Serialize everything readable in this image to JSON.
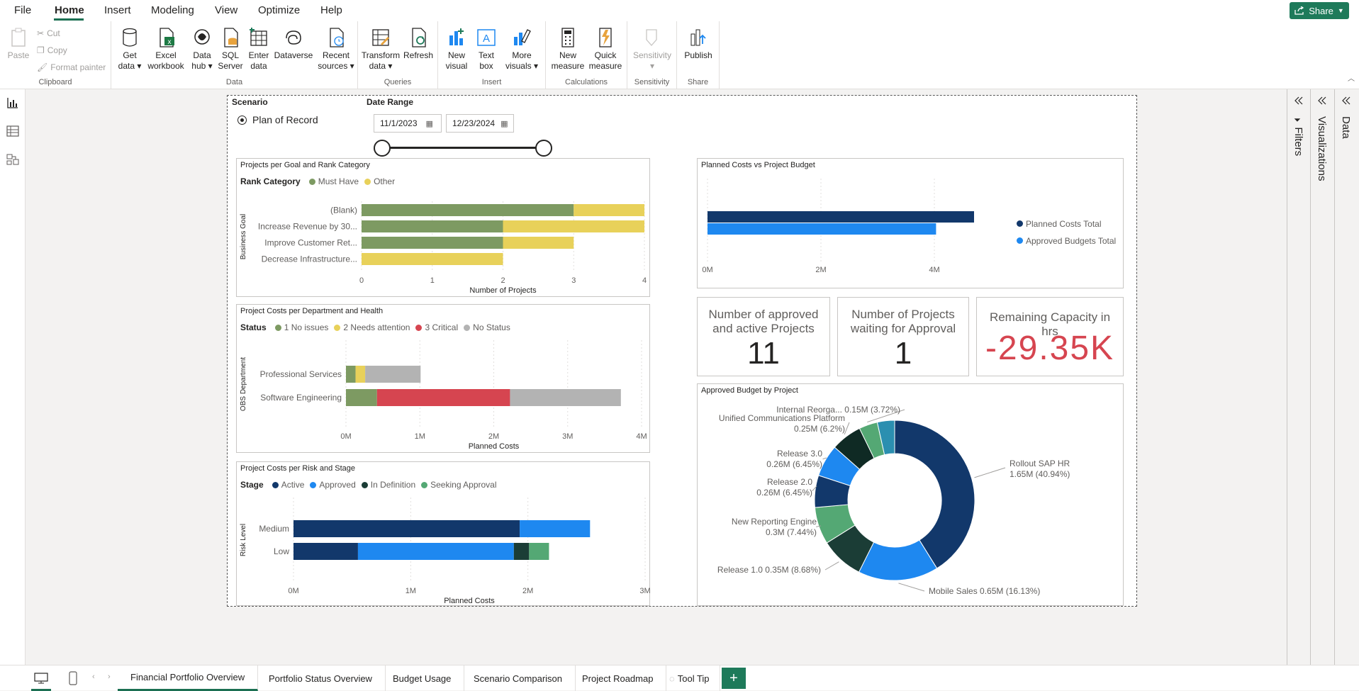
{
  "menu": {
    "items": [
      "File",
      "Home",
      "Insert",
      "Modeling",
      "View",
      "Optimize",
      "Help"
    ],
    "active": "Home",
    "share_label": "Share"
  },
  "ribbon": {
    "clipboard": {
      "label": "Clipboard",
      "paste": "Paste",
      "cut": "Cut",
      "copy": "Copy",
      "format_painter": "Format painter"
    },
    "data": {
      "label": "Data",
      "get_data": [
        "Get",
        "data"
      ],
      "excel": [
        "Excel",
        "workbook"
      ],
      "data_hub": [
        "Data",
        "hub"
      ],
      "sql": [
        "SQL",
        "Server"
      ],
      "enter": [
        "Enter",
        "data"
      ],
      "dataverse": "Dataverse",
      "recent": [
        "Recent",
        "sources"
      ]
    },
    "queries": {
      "label": "Queries",
      "transform": [
        "Transform",
        "data"
      ],
      "refresh": "Refresh"
    },
    "insert": {
      "label": "Insert",
      "new_visual": [
        "New",
        "visual"
      ],
      "text_box": [
        "Text",
        "box"
      ],
      "more_visuals": [
        "More",
        "visuals"
      ]
    },
    "calculations": {
      "label": "Calculations",
      "new_measure": [
        "New",
        "measure"
      ],
      "quick_measure": [
        "Quick",
        "measure"
      ]
    },
    "sensitivity": {
      "label": "Sensitivity",
      "btn": "Sensitivity"
    },
    "share": {
      "label": "Share",
      "publish": "Publish"
    }
  },
  "panes": {
    "filters": "Filters",
    "visualizations": "Visualizations",
    "data": "Data"
  },
  "slicers": {
    "scenario": {
      "title": "Scenario",
      "option": "Plan of Record"
    },
    "date_range": {
      "title": "Date Range",
      "start": "11/1/2023",
      "end": "12/23/2024"
    }
  },
  "kpis": [
    {
      "label": "Number of approved and active Projects",
      "value": "11"
    },
    {
      "label": "Number of Projects waiting for Approval",
      "value": "1"
    },
    {
      "label": "Remaining Capacity in hrs",
      "value": "-29.35K",
      "color": "#d64550"
    }
  ],
  "colors": {
    "accent": "#1e7a5a",
    "must_have": "#7d9a62",
    "other": "#e8d15a",
    "critical": "#d64550",
    "no_status": "#b3b3b3",
    "active": "#12386b",
    "approved": "#1e88f0",
    "in_definition": "#1b3d36",
    "seeking_approval": "#54a874"
  },
  "chart_data": [
    {
      "type": "bar",
      "title": "Projects per Goal and Rank Category",
      "legend_title": "Rank Category",
      "ylabel": "Business Goal",
      "xlabel": "Number of Projects",
      "categories": [
        "(Blank)",
        "Increase Revenue by 30...",
        "Improve Customer Ret...",
        "Decrease Infrastructure..."
      ],
      "series": [
        {
          "name": "Must Have",
          "values": [
            3,
            2,
            2,
            0
          ],
          "color": "#7d9a62"
        },
        {
          "name": "Other",
          "values": [
            1,
            2,
            1,
            2
          ],
          "color": "#e8d15a"
        }
      ],
      "xlim": [
        0,
        4
      ],
      "ticks": [
        "0",
        "1",
        "2",
        "3",
        "4"
      ],
      "stacked": true
    },
    {
      "type": "bar",
      "title": "Project Costs per Department and Health",
      "legend_title": "Status",
      "ylabel": "OBS Department",
      "xlabel": "Planned Costs",
      "categories": [
        "Professional Services",
        "Software Engineering"
      ],
      "series": [
        {
          "name": "1 No issues",
          "values": [
            0.13,
            0.42
          ],
          "color": "#7d9a62"
        },
        {
          "name": "2 Needs attention",
          "values": [
            0.13,
            0
          ],
          "color": "#e8d15a"
        },
        {
          "name": "3 Critical",
          "values": [
            0,
            1.8
          ],
          "color": "#d64550"
        },
        {
          "name": "No Status",
          "values": [
            0.75,
            1.5
          ],
          "color": "#b3b3b3"
        }
      ],
      "xlim": [
        0,
        4
      ],
      "ticks": [
        "0M",
        "1M",
        "2M",
        "3M",
        "4M"
      ],
      "stacked": true
    },
    {
      "type": "bar",
      "title": "Project Costs per Risk and Stage",
      "legend_title": "Stage",
      "ylabel": "Risk Level",
      "xlabel": "Planned Costs",
      "categories": [
        "Medium",
        "Low"
      ],
      "series": [
        {
          "name": "Active",
          "values": [
            1.93,
            0.55
          ],
          "color": "#12386b"
        },
        {
          "name": "Approved",
          "values": [
            0.6,
            1.33
          ],
          "color": "#1e88f0"
        },
        {
          "name": "In Definition",
          "values": [
            0,
            0.13
          ],
          "color": "#1b3d36"
        },
        {
          "name": "Seeking Approval",
          "values": [
            0,
            0.17
          ],
          "color": "#54a874"
        }
      ],
      "xlim": [
        0,
        3
      ],
      "ticks": [
        "0M",
        "1M",
        "2M",
        "3M"
      ],
      "stacked": true
    },
    {
      "type": "bar",
      "title": "Planned Costs vs Project Budget",
      "categories": [
        ""
      ],
      "series": [
        {
          "name": "Planned Costs Total",
          "values": [
            4.7
          ],
          "color": "#12386b"
        },
        {
          "name": "Approved Budgets Total",
          "values": [
            4.03
          ],
          "color": "#1e88f0"
        }
      ],
      "xlim": [
        0,
        5
      ],
      "ticks": [
        "0M",
        "2M",
        "4M"
      ]
    },
    {
      "type": "pie",
      "title": "Approved Budget by Project",
      "slices": [
        {
          "name": "Rollout SAP HR",
          "value": 1.65,
          "label": "1.65M (40.94%)",
          "color": "#12386b"
        },
        {
          "name": "Mobile Sales",
          "value": 0.65,
          "label": "0.65M (16.13%)",
          "color": "#1e88f0"
        },
        {
          "name": "Release 1.0",
          "value": 0.35,
          "label": "0.35M (8.68%)",
          "color": "#1b3d36"
        },
        {
          "name": "New Reporting Engine",
          "value": 0.3,
          "label": "0.3M (7.44%)",
          "color": "#54a874"
        },
        {
          "name": "Release 2.0",
          "value": 0.26,
          "label": "0.26M (6.45%)",
          "color": "#12386b"
        },
        {
          "name": "Release 3.0",
          "value": 0.26,
          "label": "0.26M (6.45%)",
          "color": "#1e88f0"
        },
        {
          "name": "Unified Communications Platform",
          "value": 0.25,
          "label": "0.25M (6.2%)",
          "color": "#0f2a24"
        },
        {
          "name": "Internal Reorga...",
          "value": 0.15,
          "label": "0.15M (3.72%)",
          "color": "#54a874"
        },
        {
          "name": "",
          "value": 0.14,
          "label": "",
          "color": "#2b8fb0"
        }
      ]
    }
  ],
  "tabs": [
    "Financial Portfolio Overview",
    "Portfolio Status Overview",
    "Budget Usage",
    "Scenario Comparison",
    "Project Roadmap",
    "Tool Tip"
  ],
  "active_tab": "Financial Portfolio Overview",
  "add_tab_label": "+"
}
